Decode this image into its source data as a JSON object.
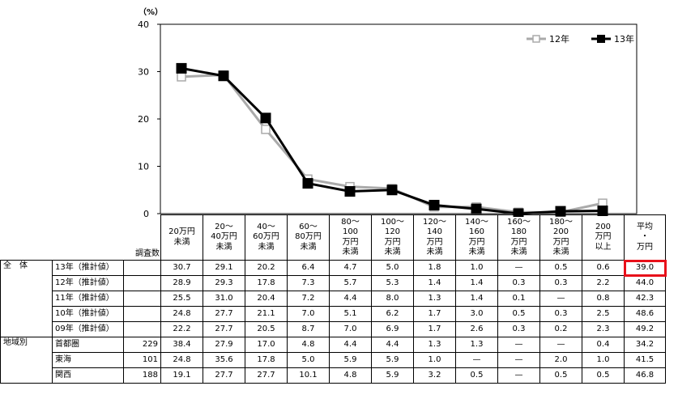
{
  "chart_data": {
    "type": "line",
    "unit_label": "（%）",
    "ylim": [
      0,
      40
    ],
    "yticks": [
      0,
      10,
      20,
      30,
      40
    ],
    "categories": [
      "20万円未満",
      "20～40万円未満",
      "40～60万円未満",
      "60～80万円未満",
      "80～100万円未満",
      "100～120万円未満",
      "120～140万円未満",
      "140～160万円未満",
      "160～180万円未満",
      "180～200万円未満",
      "200万円以上"
    ],
    "series": [
      {
        "name": "12年",
        "color": "#aaaaaa",
        "marker": "open-square",
        "values": [
          28.9,
          29.3,
          17.8,
          7.3,
          5.7,
          5.3,
          1.4,
          1.4,
          0.3,
          0.3,
          2.2
        ]
      },
      {
        "name": "13年",
        "color": "#000000",
        "marker": "filled-square",
        "values": [
          30.7,
          29.1,
          20.2,
          6.4,
          4.7,
          5.0,
          1.8,
          1.0,
          0.0,
          0.5,
          0.6
        ]
      }
    ],
    "legend_position": "top-right"
  },
  "table": {
    "count_header": "調査数",
    "columns": [
      [
        "20万円",
        "未満"
      ],
      [
        "20～",
        "40万円",
        "未満"
      ],
      [
        "40～",
        "60万円",
        "未満"
      ],
      [
        "60～",
        "80万円",
        "未満"
      ],
      [
        "80～",
        "100",
        "万円",
        "未満"
      ],
      [
        "100～",
        "120",
        "万円",
        "未満"
      ],
      [
        "120～",
        "140",
        "万円",
        "未満"
      ],
      [
        "140～",
        "160",
        "万円",
        "未満"
      ],
      [
        "160～",
        "180",
        "万円",
        "未満"
      ],
      [
        "180～",
        "200",
        "万円",
        "未満"
      ],
      [
        "200",
        "万円",
        "以上"
      ],
      [
        "平均",
        "・",
        "万円"
      ]
    ],
    "groups": [
      {
        "label": "全　体",
        "rows": [
          {
            "label": "13年（推計値）",
            "count": "",
            "values": [
              "30.7",
              "29.1",
              "20.2",
              "6.4",
              "4.7",
              "5.0",
              "1.8",
              "1.0",
              "—",
              "0.5",
              "0.6",
              "39.0"
            ],
            "highlight_last": true
          },
          {
            "label": "12年（推計値）",
            "count": "",
            "values": [
              "28.9",
              "29.3",
              "17.8",
              "7.3",
              "5.7",
              "5.3",
              "1.4",
              "1.4",
              "0.3",
              "0.3",
              "2.2",
              "44.0"
            ]
          },
          {
            "label": "11年（推計値）",
            "count": "",
            "values": [
              "25.5",
              "31.0",
              "20.4",
              "7.2",
              "4.4",
              "8.0",
              "1.3",
              "1.4",
              "0.1",
              "—",
              "0.8",
              "42.3"
            ]
          },
          {
            "label": "10年（推計値）",
            "count": "",
            "values": [
              "24.8",
              "27.7",
              "21.1",
              "7.0",
              "5.1",
              "6.2",
              "1.7",
              "3.0",
              "0.5",
              "0.3",
              "2.5",
              "48.6"
            ]
          },
          {
            "label": "09年（推計値）",
            "count": "",
            "values": [
              "22.2",
              "27.7",
              "20.5",
              "8.7",
              "7.0",
              "6.9",
              "1.7",
              "2.6",
              "0.3",
              "0.2",
              "2.3",
              "49.2"
            ]
          }
        ]
      },
      {
        "label": "地域別",
        "rows": [
          {
            "label": "首都圏",
            "count": "229",
            "values": [
              "38.4",
              "27.9",
              "17.0",
              "4.8",
              "4.4",
              "4.4",
              "1.3",
              "1.3",
              "—",
              "—",
              "0.4",
              "34.2"
            ]
          },
          {
            "label": "東海",
            "count": "101",
            "values": [
              "24.8",
              "35.6",
              "17.8",
              "5.0",
              "5.9",
              "5.9",
              "1.0",
              "—",
              "—",
              "2.0",
              "1.0",
              "41.5"
            ]
          },
          {
            "label": "関西",
            "count": "188",
            "values": [
              "19.1",
              "27.7",
              "27.7",
              "10.1",
              "4.8",
              "5.9",
              "3.2",
              "0.5",
              "—",
              "0.5",
              "0.5",
              "46.8"
            ]
          }
        ]
      }
    ]
  }
}
